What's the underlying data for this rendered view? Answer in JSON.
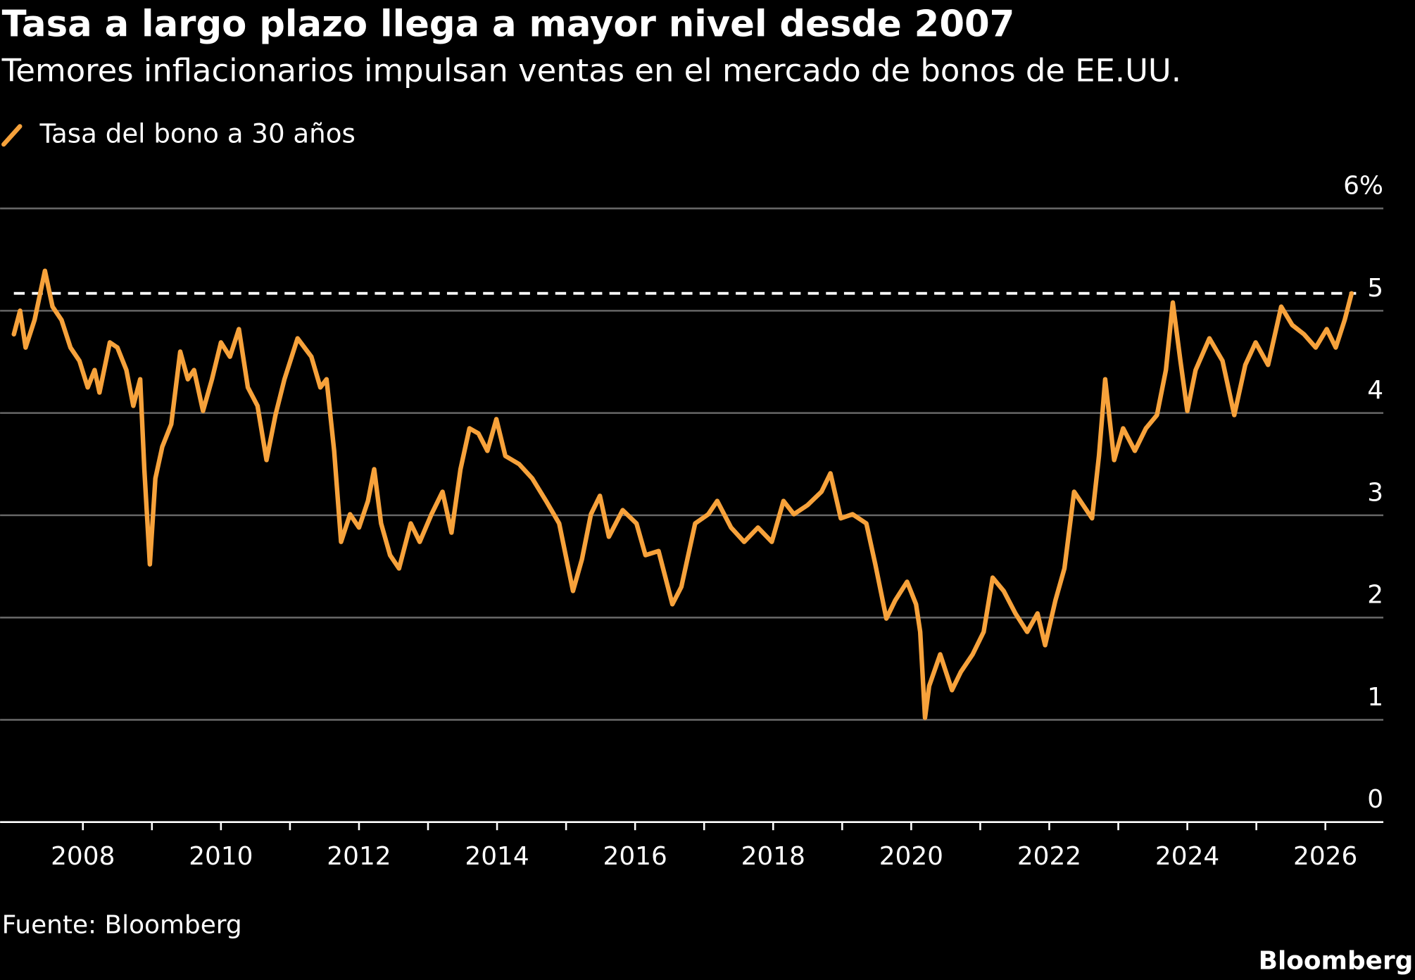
{
  "chart_data": {
    "type": "line",
    "title": "Tasa a largo plazo llega a mayor nivel desde 2007",
    "subtitle": "Temores inflacionarios impulsan ventas en el mercado de bonos de EE.UU.",
    "source": "Fuente: Bloomberg",
    "brand": "Bloomberg",
    "x": [
      2007.0,
      2007.09,
      2007.17,
      2007.3,
      2007.45,
      2007.56,
      2007.69,
      2007.82,
      2007.95,
      2008.07,
      2008.17,
      2008.24,
      2008.39,
      2008.5,
      2008.63,
      2008.73,
      2008.83,
      2008.89,
      2008.97,
      2009.05,
      2009.15,
      2009.28,
      2009.41,
      2009.52,
      2009.61,
      2009.74,
      2009.87,
      2010.0,
      2010.13,
      2010.26,
      2010.39,
      2010.53,
      2010.66,
      2010.79,
      2010.92,
      2011.11,
      2011.31,
      2011.44,
      2011.53,
      2011.64,
      2011.74,
      2011.87,
      2012.0,
      2012.13,
      2012.22,
      2012.32,
      2012.45,
      2012.58,
      2012.75,
      2012.88,
      2013.05,
      2013.21,
      2013.34,
      2013.47,
      2013.6,
      2013.73,
      2013.86,
      2013.99,
      2014.12,
      2014.32,
      2014.51,
      2014.71,
      2014.9,
      2015.1,
      2015.23,
      2015.36,
      2015.49,
      2015.62,
      2015.82,
      2016.02,
      2016.15,
      2016.34,
      2016.54,
      2016.67,
      2016.87,
      2017.06,
      2017.19,
      2017.39,
      2017.58,
      2017.78,
      2017.98,
      2018.15,
      2018.3,
      2018.5,
      2018.7,
      2018.83,
      2018.98,
      2019.15,
      2019.35,
      2019.48,
      2019.64,
      2019.77,
      2019.94,
      2020.07,
      2020.13,
      2020.2,
      2020.26,
      2020.42,
      2020.59,
      2020.72,
      2020.89,
      2021.05,
      2021.18,
      2021.34,
      2021.51,
      2021.68,
      2021.83,
      2021.94,
      2022.09,
      2022.22,
      2022.36,
      2022.49,
      2022.62,
      2022.72,
      2022.81,
      2022.94,
      2023.07,
      2023.24,
      2023.4,
      2023.56,
      2023.69,
      2023.79,
      2023.9,
      2024.0,
      2024.12,
      2024.32,
      2024.51,
      2024.68,
      2024.84,
      2024.99,
      2025.17,
      2025.36,
      2025.52,
      2025.69,
      2025.86,
      2026.02,
      2026.15,
      2026.28,
      2026.38
    ],
    "series": [
      {
        "name": "Tasa del bono a 30 años",
        "color": "#f7a23b",
        "values": [
          4.77,
          5.0,
          4.64,
          4.91,
          5.39,
          5.04,
          4.91,
          4.64,
          4.51,
          4.25,
          4.42,
          4.2,
          4.69,
          4.64,
          4.42,
          4.07,
          4.33,
          3.45,
          2.52,
          3.36,
          3.67,
          3.89,
          4.6,
          4.33,
          4.42,
          4.02,
          4.33,
          4.69,
          4.55,
          4.82,
          4.25,
          4.07,
          3.54,
          3.98,
          4.33,
          4.73,
          4.55,
          4.25,
          4.33,
          3.63,
          2.74,
          3.01,
          2.88,
          3.14,
          3.45,
          2.92,
          2.61,
          2.48,
          2.92,
          2.74,
          3.01,
          3.23,
          2.83,
          3.45,
          3.85,
          3.8,
          3.63,
          3.94,
          3.58,
          3.5,
          3.36,
          3.14,
          2.92,
          2.26,
          2.57,
          3.01,
          3.19,
          2.79,
          3.05,
          2.92,
          2.61,
          2.65,
          2.13,
          2.3,
          2.92,
          3.01,
          3.14,
          2.88,
          2.74,
          2.88,
          2.74,
          3.14,
          3.01,
          3.1,
          3.23,
          3.41,
          2.97,
          3.01,
          2.92,
          2.52,
          1.99,
          2.17,
          2.35,
          2.13,
          1.86,
          1.02,
          1.33,
          1.64,
          1.29,
          1.47,
          1.64,
          1.86,
          2.39,
          2.26,
          2.04,
          1.86,
          2.04,
          1.73,
          2.17,
          2.48,
          3.23,
          3.1,
          2.97,
          3.58,
          4.33,
          3.54,
          3.85,
          3.63,
          3.85,
          3.98,
          4.42,
          5.08,
          4.51,
          4.02,
          4.42,
          4.73,
          4.51,
          3.98,
          4.47,
          4.69,
          4.47,
          5.04,
          4.86,
          4.77,
          4.64,
          4.82,
          4.64,
          4.91,
          5.17
        ]
      }
    ],
    "reference_value": 5.17,
    "xlim": [
      2006.8,
      2026.84
    ],
    "xticks": [
      2008,
      2010,
      2012,
      2014,
      2016,
      2018,
      2020,
      2022,
      2024,
      2026
    ],
    "xminorticks": [
      2009,
      2011,
      2013,
      2015,
      2017,
      2019,
      2021,
      2023,
      2025
    ],
    "ylim": [
      0,
      6
    ],
    "yticks": [
      0,
      1,
      2,
      3,
      4,
      {
        "value": 5,
        "label": "5"
      },
      {
        "value": 6,
        "label": "6%"
      }
    ],
    "grid": true
  }
}
